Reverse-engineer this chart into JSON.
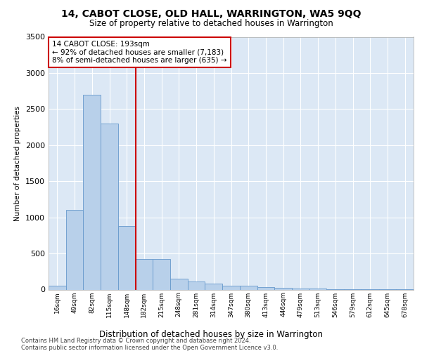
{
  "title1": "14, CABOT CLOSE, OLD HALL, WARRINGTON, WA5 9QQ",
  "title2": "Size of property relative to detached houses in Warrington",
  "xlabel": "Distribution of detached houses by size in Warrington",
  "ylabel": "Number of detached properties",
  "categories": [
    "16sqm",
    "49sqm",
    "82sqm",
    "115sqm",
    "148sqm",
    "182sqm",
    "215sqm",
    "248sqm",
    "281sqm",
    "314sqm",
    "347sqm",
    "380sqm",
    "413sqm",
    "446sqm",
    "479sqm",
    "513sqm",
    "546sqm",
    "579sqm",
    "612sqm",
    "645sqm",
    "678sqm"
  ],
  "values": [
    50,
    1100,
    2700,
    2300,
    880,
    420,
    420,
    155,
    115,
    80,
    55,
    50,
    30,
    20,
    15,
    10,
    5,
    3,
    2,
    1,
    1
  ],
  "bar_color": "#b8d0ea",
  "bar_edge_color": "#6699cc",
  "vline_x": 4.5,
  "vline_color": "#cc0000",
  "annotation_text": "14 CABOT CLOSE: 193sqm\n← 92% of detached houses are smaller (7,183)\n8% of semi-detached houses are larger (635) →",
  "annotation_box_color": "#ffffff",
  "annotation_box_edge": "#cc0000",
  "ylim": [
    0,
    3500
  ],
  "yticks": [
    0,
    500,
    1000,
    1500,
    2000,
    2500,
    3000,
    3500
  ],
  "bg_color": "#dce8f5",
  "grid_color": "#ffffff",
  "footer1": "Contains HM Land Registry data © Crown copyright and database right 2024.",
  "footer2": "Contains public sector information licensed under the Open Government Licence v3.0."
}
